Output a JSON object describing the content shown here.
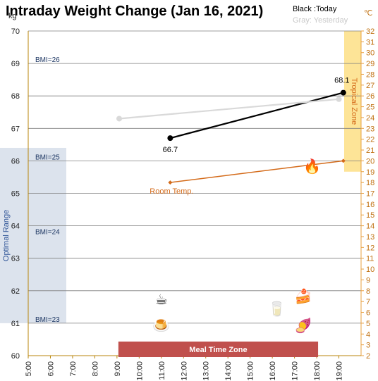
{
  "chart_data": {
    "type": "line",
    "title": "Intraday Weight Change (Jan 16, 2021)",
    "legend": {
      "today": "Black :Today",
      "yesterday": "Gray: Yesterday"
    },
    "y_unit_left": "kg",
    "y_unit_right": "℃",
    "ylim_left": [
      60,
      70
    ],
    "ylim_right": [
      2,
      32
    ],
    "xlim": [
      5,
      20
    ],
    "x_ticks": [
      "5:00",
      "6:00",
      "7:00",
      "8:00",
      "9:00",
      "10:00",
      "11:00",
      "12:00",
      "13:00",
      "14:00",
      "15:00",
      "16:00",
      "17:00",
      "18:00",
      "19:00"
    ],
    "x_tick_hours": [
      5,
      6,
      7,
      8,
      9,
      10,
      11,
      12,
      13,
      14,
      15,
      16,
      17,
      18,
      19
    ],
    "y_ticks_left": [
      60,
      61,
      62,
      63,
      64,
      65,
      66,
      67,
      68,
      69,
      70
    ],
    "y_ticks_right": [
      2,
      3,
      4,
      5,
      6,
      7,
      8,
      9,
      10,
      11,
      12,
      13,
      14,
      15,
      16,
      17,
      18,
      19,
      20,
      21,
      22,
      23,
      24,
      25,
      26,
      27,
      28,
      29,
      30,
      31,
      32
    ],
    "y_axis_label_left": "Optimal Range",
    "y_axis_label_right": "Tropical Zone",
    "series": [
      {
        "name": "Today",
        "color": "#000000",
        "x": [
          11.4,
          19.2
        ],
        "y": [
          66.7,
          68.1
        ],
        "labels": [
          "66.7",
          "68.1"
        ]
      },
      {
        "name": "Yesterday",
        "color": "#d9d9d9",
        "x": [
          9.1,
          19.0
        ],
        "y": [
          67.3,
          67.9
        ]
      },
      {
        "name": "Room Temp.",
        "color": "#d46b1a",
        "axis": "right",
        "x": [
          11.4,
          19.2
        ],
        "y": [
          18.0,
          20.0
        ]
      }
    ],
    "bmi_lines": [
      {
        "label": "BMI=26",
        "y": 69.0
      },
      {
        "label": "BMI=25",
        "y": 66.0
      },
      {
        "label": "BMI=24",
        "y": 63.7
      },
      {
        "label": "BMI=23",
        "y": 61.0
      }
    ],
    "optimal_range": {
      "y_from": 61.0,
      "y_to": 66.4,
      "color": "#dce3ed"
    },
    "tropical_zone": {
      "y_from": 19.0,
      "y_to": 32.0,
      "color": "#fde497"
    },
    "meal_time_zone": {
      "label": "Meal Time Zone",
      "x_from": 9.0,
      "x_to": 18.0,
      "color": "#c0504d"
    },
    "grid": "horizontal",
    "icons": [
      {
        "name": "fireplace-icon",
        "glyph": "🔥",
        "x": 17.8,
        "y": 65.8
      },
      {
        "name": "coffee-icon",
        "glyph": "☕",
        "x": 11.0,
        "y": 61.7
      },
      {
        "name": "pudding-icon",
        "glyph": "🍮",
        "x": 11.0,
        "y": 60.9
      },
      {
        "name": "water-glass-icon",
        "glyph": "🥛",
        "x": 16.2,
        "y": 61.4
      },
      {
        "name": "cheesecake-icon",
        "glyph": "🍰",
        "x": 17.4,
        "y": 61.8
      },
      {
        "name": "sweet-potato-icon",
        "glyph": "🍠",
        "x": 17.4,
        "y": 60.9
      }
    ]
  }
}
